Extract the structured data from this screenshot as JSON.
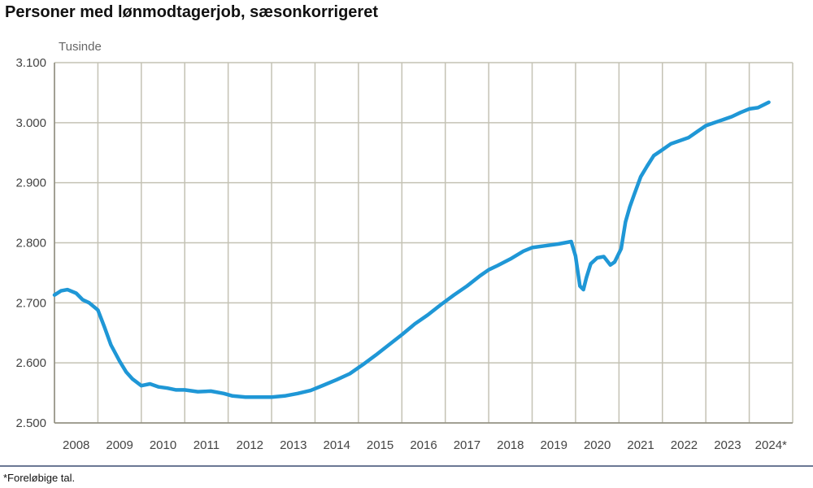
{
  "header": {
    "title": "Personer med lønmodtagerjob, sæsonkorrigeret"
  },
  "footer": {
    "footnote": "*Foreløbige tal."
  },
  "colors": {
    "series": "#1f97d6",
    "grid": "#c4c2b4",
    "axis": "#8d8b7e"
  },
  "chart_data": {
    "type": "line",
    "title": "Personer med lønmodtagerjob, sæsonkorrigeret",
    "ylabel": "Tusinde",
    "xlabel": "",
    "ylim": [
      2500,
      3100
    ],
    "xlim": [
      2008.0,
      2025.0
    ],
    "y_ticks": [
      "2.500",
      "2.600",
      "2.700",
      "2.800",
      "2.900",
      "3.000",
      "3.100"
    ],
    "x_tick_labels": [
      "2008",
      "2009",
      "2010",
      "2011",
      "2012",
      "2013",
      "2014",
      "2015",
      "2016",
      "2017",
      "2018",
      "2019",
      "2020",
      "2021",
      "2022",
      "2023",
      "2024*"
    ],
    "grid": true,
    "legend": "none",
    "series": [
      {
        "x": [
          2008.0,
          2008.15,
          2008.3,
          2008.5,
          2008.65,
          2008.8,
          2009.0,
          2009.15,
          2009.3,
          2009.5,
          2009.65,
          2009.8,
          2010.0,
          2010.2,
          2010.4,
          2010.6,
          2010.8,
          2011.0,
          2011.3,
          2011.6,
          2011.9,
          2012.1,
          2012.4,
          2012.7,
          2013.0,
          2013.3,
          2013.6,
          2013.9,
          2014.2,
          2014.5,
          2014.8,
          2015.1,
          2015.4,
          2015.7,
          2016.0,
          2016.3,
          2016.6,
          2016.9,
          2017.2,
          2017.5,
          2017.8,
          2018.0,
          2018.2,
          2018.5,
          2018.8,
          2019.0,
          2019.3,
          2019.6,
          2019.9,
          2020.0,
          2020.1,
          2020.18,
          2020.25,
          2020.35,
          2020.5,
          2020.65,
          2020.8,
          2020.9,
          2021.05,
          2021.15,
          2021.25,
          2021.35,
          2021.5,
          2021.65,
          2021.8,
          2022.0,
          2022.2,
          2022.4,
          2022.6,
          2022.8,
          2023.0,
          2023.2,
          2023.4,
          2023.6,
          2023.8,
          2024.0,
          2024.2,
          2024.45
        ],
        "y": [
          2713,
          2720,
          2722,
          2716,
          2705,
          2700,
          2688,
          2660,
          2630,
          2603,
          2585,
          2573,
          2562,
          2565,
          2560,
          2558,
          2555,
          2555,
          2552,
          2553,
          2549,
          2545,
          2543,
          2543,
          2543,
          2545,
          2549,
          2554,
          2563,
          2572,
          2582,
          2597,
          2613,
          2630,
          2647,
          2665,
          2680,
          2697,
          2713,
          2728,
          2745,
          2755,
          2762,
          2773,
          2786,
          2792,
          2795,
          2798,
          2802,
          2778,
          2728,
          2722,
          2742,
          2765,
          2775,
          2777,
          2763,
          2768,
          2790,
          2835,
          2860,
          2880,
          2910,
          2928,
          2945,
          2955,
          2965,
          2970,
          2975,
          2985,
          2995,
          3000,
          3005,
          3010,
          3017,
          3023,
          3025,
          3034
        ]
      }
    ]
  }
}
